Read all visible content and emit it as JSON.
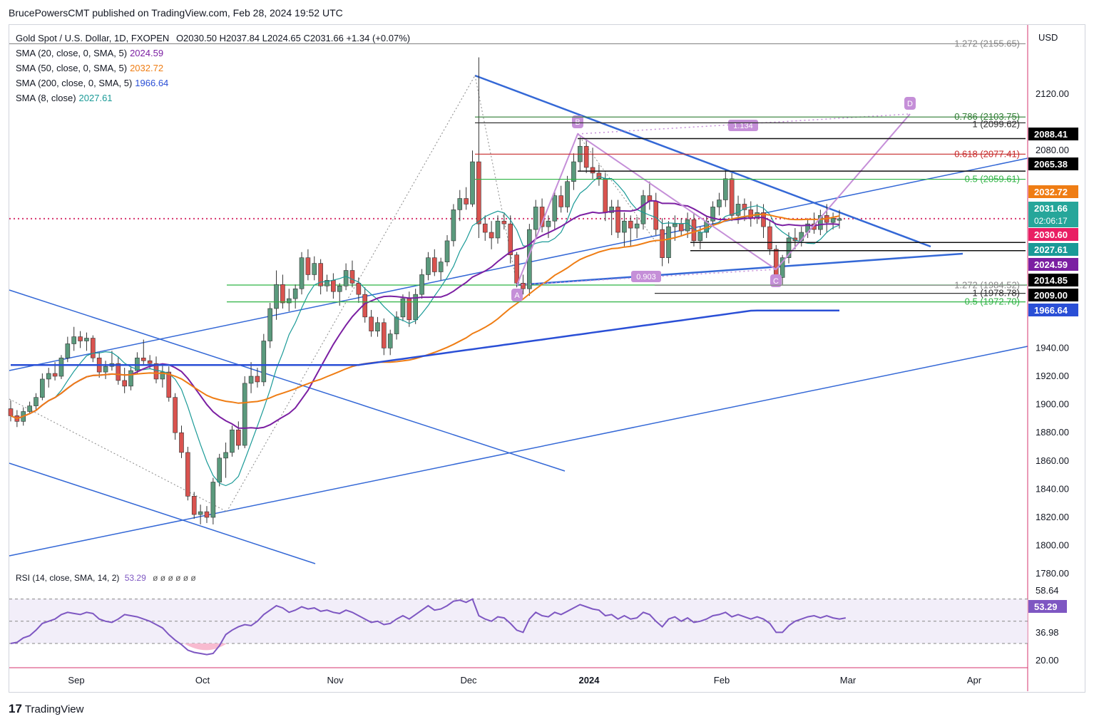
{
  "header": {
    "publisher": "BrucePowersCMT published on TradingView.com, Feb 28, 2024 19:52 UTC",
    "currency": "USD"
  },
  "legend": {
    "symbol": "Gold Spot / U.S. Dollar, 1D, FXOPEN",
    "ohlc": "O2030.50  H2037.84  L2024.65  C2031.66  +1.34 (+0.07%)",
    "sma20_label": "SMA (20, close, 0, SMA, 5)",
    "sma20_value": "2024.59",
    "sma50_label": "SMA (50, close, 0, SMA, 5)",
    "sma50_value": "2032.72",
    "sma200_label": "SMA (200, close, 0, SMA, 5)",
    "sma200_value": "1966.64",
    "sma8_label": "SMA (8, close)",
    "sma8_value": "2027.61"
  },
  "rsi": {
    "label": "RSI (14, close, SMA, 14, 2)",
    "value": "53.29",
    "placeholders": "ø ø ø ø ø ø",
    "axis_labels": [
      "58.64",
      "36.98",
      "20.00"
    ],
    "badge": "53.29"
  },
  "footer": {
    "brand": "TradingView"
  },
  "colors": {
    "up": "#5b9a7d",
    "down": "#d9534f",
    "sma20": "#7b1fa2",
    "sma50": "#ef7d14",
    "sma200": "#2a4fd6",
    "sma8": "#1a9a97",
    "trend": "#3468d6",
    "pattern": "#c58fd8"
  },
  "chart_data": {
    "type": "candlestick",
    "x_labels": [
      "Sep",
      "Oct",
      "Nov",
      "Dec",
      "2024",
      "Feb",
      "Mar",
      "Apr"
    ],
    "y_ticks": [
      2120,
      2080,
      1940,
      1920,
      1900,
      1880,
      1860,
      1840,
      1820,
      1800,
      1780
    ],
    "ylim": [
      1770,
      2170
    ],
    "fib_levels": [
      {
        "label": "1.272 (2155.65)",
        "value": 2155.65
      },
      {
        "label": "0.786 (2103.75)",
        "value": 2103.75
      },
      {
        "label": "1 (2099.62)",
        "value": 2099.62
      },
      {
        "label": "0.618 (2077.41)",
        "value": 2077.41
      },
      {
        "label": "0.5 (2059.61)",
        "value": 2059.61
      },
      {
        "label": "1.272 (1984.52)",
        "value": 1984.52
      },
      {
        "label": "1 (1978.78)",
        "value": 1978.78
      },
      {
        "label": "0.5 (1972.70)",
        "value": 1972.7
      }
    ],
    "price_badges": [
      {
        "label": "2088.41",
        "value": 2088.41
      },
      {
        "label": "2065.38",
        "value": 2065.38
      },
      {
        "label": "2032.72",
        "value": 2032.72
      },
      {
        "label": "2031.66",
        "value": 2031.66,
        "sub": "02:06:17"
      },
      {
        "label": "2030.60",
        "value": 2030.6
      },
      {
        "label": "2027.61",
        "value": 2027.61
      },
      {
        "label": "2024.59",
        "value": 2024.59
      },
      {
        "label": "2014.85",
        "value": 2014.85
      },
      {
        "label": "2009.00",
        "value": 2009.0
      },
      {
        "label": "1966.64",
        "value": 1966.64
      }
    ],
    "pattern_points": [
      {
        "label": "A",
        "value": 1973
      },
      {
        "label": "B",
        "value": 2088
      },
      {
        "label": "C",
        "value": 1984
      },
      {
        "label": "D",
        "value": 2104
      }
    ],
    "pattern_ratios": [
      "1.134",
      "0.903"
    ],
    "candles": [
      [
        1897,
        1903,
        1888,
        1892
      ],
      [
        1892,
        1896,
        1884,
        1888
      ],
      [
        1888,
        1898,
        1885,
        1895
      ],
      [
        1895,
        1902,
        1893,
        1899
      ],
      [
        1899,
        1908,
        1896,
        1905
      ],
      [
        1905,
        1922,
        1903,
        1918
      ],
      [
        1918,
        1926,
        1912,
        1922
      ],
      [
        1922,
        1930,
        1917,
        1920
      ],
      [
        1920,
        1935,
        1918,
        1933
      ],
      [
        1933,
        1948,
        1930,
        1943
      ],
      [
        1943,
        1955,
        1938,
        1948
      ],
      [
        1948,
        1952,
        1940,
        1945
      ],
      [
        1945,
        1951,
        1938,
        1947
      ],
      [
        1947,
        1949,
        1930,
        1933
      ],
      [
        1933,
        1937,
        1919,
        1923
      ],
      [
        1923,
        1931,
        1918,
        1927
      ],
      [
        1927,
        1938,
        1924,
        1929
      ],
      [
        1929,
        1934,
        1914,
        1917
      ],
      [
        1917,
        1926,
        1908,
        1913
      ],
      [
        1913,
        1927,
        1910,
        1924
      ],
      [
        1924,
        1937,
        1922,
        1933
      ],
      [
        1933,
        1946,
        1928,
        1931
      ],
      [
        1931,
        1935,
        1925,
        1929
      ],
      [
        1929,
        1934,
        1915,
        1918
      ],
      [
        1918,
        1928,
        1912,
        1923
      ],
      [
        1923,
        1927,
        1902,
        1905
      ],
      [
        1905,
        1908,
        1875,
        1880
      ],
      [
        1880,
        1885,
        1862,
        1866
      ],
      [
        1866,
        1870,
        1832,
        1835
      ],
      [
        1835,
        1838,
        1819,
        1822
      ],
      [
        1822,
        1829,
        1815,
        1824
      ],
      [
        1824,
        1828,
        1816,
        1820
      ],
      [
        1820,
        1848,
        1815,
        1845
      ],
      [
        1845,
        1865,
        1842,
        1862
      ],
      [
        1862,
        1873,
        1848,
        1866
      ],
      [
        1866,
        1885,
        1863,
        1882
      ],
      [
        1882,
        1888,
        1868,
        1871
      ],
      [
        1871,
        1920,
        1869,
        1915
      ],
      [
        1915,
        1930,
        1908,
        1920
      ],
      [
        1920,
        1926,
        1912,
        1916
      ],
      [
        1916,
        1950,
        1913,
        1945
      ],
      [
        1945,
        1972,
        1940,
        1968
      ],
      [
        1968,
        1995,
        1960,
        1985
      ],
      [
        1985,
        1992,
        1968,
        1972
      ],
      [
        1972,
        1982,
        1966,
        1975
      ],
      [
        1975,
        1985,
        1968,
        1982
      ],
      [
        1982,
        2008,
        1978,
        2004
      ],
      [
        2004,
        2010,
        1988,
        1992
      ],
      [
        1992,
        2005,
        1988,
        2000
      ],
      [
        2000,
        2003,
        1978,
        1984
      ],
      [
        1984,
        1992,
        1980,
        1988
      ],
      [
        1988,
        1993,
        1975,
        1980
      ],
      [
        1980,
        1986,
        1970,
        1984
      ],
      [
        1984,
        2000,
        1981,
        1995
      ],
      [
        1995,
        2002,
        1983,
        1986
      ],
      [
        1986,
        1990,
        1972,
        1978
      ],
      [
        1978,
        1983,
        1958,
        1962
      ],
      [
        1962,
        1967,
        1948,
        1952
      ],
      [
        1952,
        1962,
        1948,
        1958
      ],
      [
        1958,
        1961,
        1935,
        1940
      ],
      [
        1940,
        1953,
        1935,
        1950
      ],
      [
        1950,
        1966,
        1946,
        1962
      ],
      [
        1962,
        1978,
        1959,
        1975
      ],
      [
        1975,
        1980,
        1955,
        1960
      ],
      [
        1960,
        1982,
        1957,
        1978
      ],
      [
        1978,
        1996,
        1975,
        1992
      ],
      [
        1992,
        2008,
        1988,
        2004
      ],
      [
        2004,
        2010,
        1991,
        1994
      ],
      [
        1994,
        2004,
        1988,
        2001
      ],
      [
        2001,
        2020,
        1998,
        2016
      ],
      [
        2016,
        2042,
        2012,
        2038
      ],
      [
        2038,
        2052,
        2030,
        2046
      ],
      [
        2046,
        2054,
        2038,
        2042
      ],
      [
        2042,
        2080,
        2040,
        2072
      ],
      [
        2072,
        2146,
        2018,
        2028
      ],
      [
        2028,
        2034,
        2016,
        2022
      ],
      [
        2022,
        2030,
        2010,
        2018
      ],
      [
        2018,
        2034,
        2014,
        2030
      ],
      [
        2030,
        2036,
        2024,
        2028
      ],
      [
        2028,
        2034,
        2000,
        2006
      ],
      [
        2006,
        2008,
        1983,
        1986
      ],
      [
        1986,
        1992,
        1978,
        1982
      ],
      [
        1982,
        2028,
        1977,
        2024
      ],
      [
        2024,
        2045,
        2018,
        2040
      ],
      [
        2040,
        2046,
        2022,
        2026
      ],
      [
        2026,
        2034,
        2018,
        2030
      ],
      [
        2030,
        2052,
        2024,
        2048
      ],
      [
        2048,
        2055,
        2036,
        2040
      ],
      [
        2040,
        2062,
        2036,
        2058
      ],
      [
        2058,
        2078,
        2052,
        2072
      ],
      [
        2072,
        2088,
        2065,
        2083
      ],
      [
        2083,
        2088,
        2064,
        2068
      ],
      [
        2068,
        2082,
        2060,
        2064
      ],
      [
        2064,
        2070,
        2055,
        2060
      ],
      [
        2060,
        2064,
        2030,
        2036
      ],
      [
        2036,
        2045,
        2020,
        2040
      ],
      [
        2040,
        2045,
        2018,
        2022
      ],
      [
        2022,
        2036,
        2012,
        2030
      ],
      [
        2030,
        2034,
        2012,
        2025
      ],
      [
        2025,
        2033,
        2018,
        2028
      ],
      [
        2028,
        2052,
        2024,
        2048
      ],
      [
        2048,
        2058,
        2038,
        2044
      ],
      [
        2044,
        2050,
        2020,
        2024
      ],
      [
        2024,
        2032,
        1998,
        2004
      ],
      [
        2004,
        2030,
        2000,
        2026
      ],
      [
        2026,
        2034,
        2016,
        2028
      ],
      [
        2028,
        2032,
        2019,
        2023
      ],
      [
        2023,
        2036,
        2018,
        2031
      ],
      [
        2031,
        2036,
        2012,
        2016
      ],
      [
        2016,
        2026,
        2010,
        2022
      ],
      [
        2022,
        2034,
        2018,
        2030
      ],
      [
        2030,
        2044,
        2026,
        2040
      ],
      [
        2040,
        2050,
        2034,
        2045
      ],
      [
        2045,
        2066,
        2040,
        2060
      ],
      [
        2060,
        2064,
        2030,
        2034
      ],
      [
        2034,
        2048,
        2028,
        2042
      ],
      [
        2042,
        2046,
        2030,
        2038
      ],
      [
        2038,
        2044,
        2026,
        2032
      ],
      [
        2032,
        2042,
        2028,
        2036
      ],
      [
        2036,
        2042,
        2018,
        2026
      ],
      [
        2026,
        2030,
        2006,
        2010
      ],
      [
        2010,
        2013,
        1984,
        1990
      ],
      [
        1990,
        2006,
        1985,
        2004
      ],
      [
        2004,
        2022,
        2000,
        2018
      ],
      [
        2018,
        2025,
        2010,
        2016
      ],
      [
        2016,
        2026,
        2012,
        2022
      ],
      [
        2022,
        2032,
        2018,
        2028
      ],
      [
        2028,
        2036,
        2021,
        2024
      ],
      [
        2024,
        2038,
        2020,
        2034
      ],
      [
        2034,
        2042,
        2022,
        2029
      ],
      [
        2029,
        2036,
        2024,
        2032
      ],
      [
        2030.5,
        2037.84,
        2024.65,
        2031.66
      ]
    ],
    "rsi_values": [
      30,
      31,
      35,
      37,
      42,
      48,
      50,
      52,
      56,
      58,
      57,
      56,
      58,
      57,
      52,
      50,
      49,
      52,
      56,
      55,
      54,
      52,
      50,
      47,
      44,
      38,
      33,
      29,
      24,
      22,
      21,
      20,
      21,
      28,
      38,
      42,
      45,
      47,
      46,
      50,
      56,
      60,
      64,
      62,
      58,
      60,
      63,
      61,
      62,
      59,
      60,
      58,
      57,
      60,
      58,
      55,
      52,
      49,
      50,
      47,
      48,
      52,
      55,
      52,
      56,
      60,
      64,
      60,
      61,
      64,
      68,
      69,
      67,
      70,
      55,
      52,
      50,
      54,
      53,
      48,
      42,
      40,
      52,
      58,
      55,
      54,
      58,
      56,
      59,
      62,
      65,
      63,
      61,
      60,
      55,
      56,
      52,
      55,
      52,
      53,
      58,
      56,
      50,
      45,
      52,
      54,
      50,
      53,
      49,
      50,
      52,
      55,
      56,
      58,
      54,
      56,
      54,
      52,
      54,
      52,
      48,
      40,
      40,
      46,
      50,
      52,
      54,
      55,
      53,
      55,
      53,
      52,
      53
    ]
  }
}
